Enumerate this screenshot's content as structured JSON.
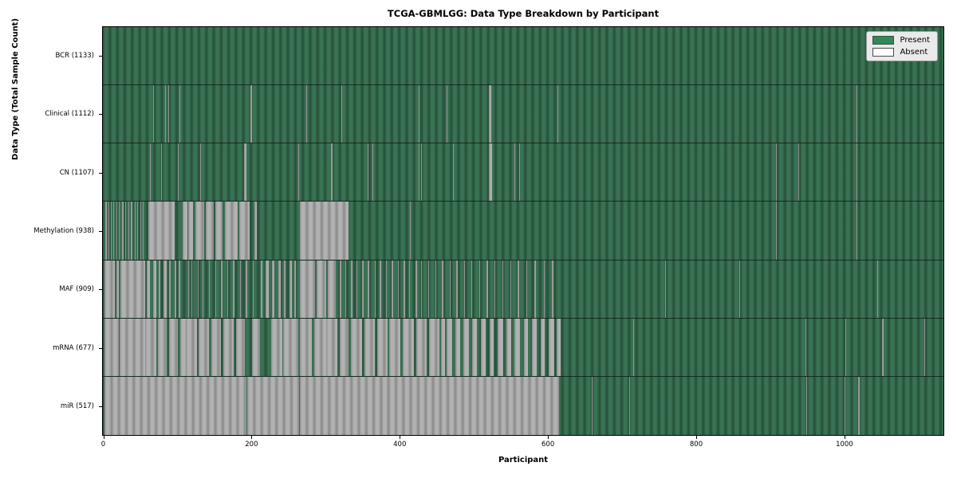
{
  "title": "TCGA-GBMLGG: Data Type Breakdown by Participant",
  "xlabel": "Participant",
  "ylabel": "Data Type (Total Sample Count)",
  "legend": {
    "present_label": "Present",
    "absent_label": "Absent",
    "present_color": "#2e8b57",
    "absent_color": "#ffffff"
  },
  "colors": {
    "present_fill": "#2e8b57",
    "present_rendered_dark": "#27523b",
    "present_rendered_light": "#3a7254",
    "absent_rendered_dark": "#8d8d8d",
    "absent_rendered_light": "#b2b2b2",
    "legend_bg": "#eaeaea",
    "background": "#ffffff"
  },
  "chart_data": {
    "type": "heatmap",
    "title": "TCGA-GBMLGG: Data Type Breakdown by Participant",
    "xlabel": "Participant",
    "ylabel": "Data Type (Total Sample Count)",
    "x_range": [
      0,
      1133
    ],
    "x_ticks": [
      0,
      200,
      400,
      600,
      800,
      1000
    ],
    "legend_entries": [
      "Present",
      "Absent"
    ],
    "legend_position": "upper right",
    "rows": [
      {
        "name": "BCR",
        "count": 1133,
        "label": "BCR (1133)",
        "absent_runs": []
      },
      {
        "name": "Clinical",
        "count": 1112,
        "label": "Clinical (1112)",
        "absent_runs": [
          [
            66,
            67
          ],
          [
            82,
            83
          ],
          [
            87,
            88
          ],
          [
            102,
            103
          ],
          [
            197,
            200
          ],
          [
            273,
            274
          ],
          [
            320,
            321
          ],
          [
            424,
            425
          ],
          [
            462,
            463
          ],
          [
            519,
            522
          ],
          [
            612,
            613
          ],
          [
            1015,
            1016
          ]
        ]
      },
      {
        "name": "CN",
        "count": 1107,
        "label": "CN (1107)",
        "absent_runs": [
          [
            62,
            63
          ],
          [
            77,
            78
          ],
          [
            100,
            101
          ],
          [
            130,
            131
          ],
          [
            189,
            192
          ],
          [
            262,
            263
          ],
          [
            306,
            308
          ],
          [
            356,
            357
          ],
          [
            362,
            363
          ],
          [
            424,
            425
          ],
          [
            428,
            429
          ],
          [
            471,
            472
          ],
          [
            519,
            523
          ],
          [
            554,
            555
          ],
          [
            560,
            561
          ],
          [
            906,
            907
          ],
          [
            937,
            938
          ],
          [
            1015,
            1016
          ]
        ]
      },
      {
        "name": "Methylation",
        "count": 938,
        "label": "Methylation (938)",
        "absent_runs": [
          [
            2,
            4
          ],
          [
            6,
            7
          ],
          [
            9,
            10
          ],
          [
            12,
            14
          ],
          [
            17,
            18
          ],
          [
            20,
            21
          ],
          [
            24,
            26
          ],
          [
            29,
            30
          ],
          [
            33,
            34
          ],
          [
            36,
            38
          ],
          [
            41,
            42
          ],
          [
            45,
            46
          ],
          [
            49,
            50
          ],
          [
            52,
            53
          ],
          [
            60,
            95
          ],
          [
            106,
            112
          ],
          [
            114,
            120
          ],
          [
            123,
            135
          ],
          [
            137,
            148
          ],
          [
            150,
            160
          ],
          [
            163,
            180
          ],
          [
            182,
            196
          ],
          [
            203,
            206
          ],
          [
            264,
            330
          ],
          [
            413,
            414
          ],
          [
            906,
            907
          ],
          [
            1015,
            1016
          ]
        ]
      },
      {
        "name": "MAF",
        "count": 909,
        "label": "MAF (909)",
        "absent_runs": [
          [
            1,
            15
          ],
          [
            17,
            20
          ],
          [
            22,
            55
          ],
          [
            58,
            62
          ],
          [
            66,
            70
          ],
          [
            74,
            76
          ],
          [
            80,
            84
          ],
          [
            88,
            90
          ],
          [
            95,
            97
          ],
          [
            101,
            103
          ],
          [
            113,
            114
          ],
          [
            118,
            119
          ],
          [
            126,
            128
          ],
          [
            133,
            134
          ],
          [
            141,
            143
          ],
          [
            150,
            151
          ],
          [
            158,
            160
          ],
          [
            166,
            167
          ],
          [
            174,
            176
          ],
          [
            183,
            184
          ],
          [
            191,
            193
          ],
          [
            201,
            202
          ],
          [
            211,
            214
          ],
          [
            218,
            222
          ],
          [
            227,
            230
          ],
          [
            235,
            238
          ],
          [
            243,
            245
          ],
          [
            250,
            253
          ],
          [
            257,
            259
          ],
          [
            264,
            285
          ],
          [
            287,
            300
          ],
          [
            302,
            313
          ],
          [
            318,
            320
          ],
          [
            325,
            327
          ],
          [
            333,
            335
          ],
          [
            341,
            342
          ],
          [
            348,
            350
          ],
          [
            356,
            358
          ],
          [
            365,
            366
          ],
          [
            372,
            374
          ],
          [
            380,
            381
          ],
          [
            388,
            390
          ],
          [
            396,
            397
          ],
          [
            404,
            406
          ],
          [
            412,
            413
          ],
          [
            420,
            422
          ],
          [
            428,
            429
          ],
          [
            437,
            439
          ],
          [
            447,
            448
          ],
          [
            456,
            458
          ],
          [
            466,
            467
          ],
          [
            475,
            477
          ],
          [
            486,
            487
          ],
          [
            495,
            497
          ],
          [
            506,
            507
          ],
          [
            516,
            518
          ],
          [
            527,
            528
          ],
          [
            537,
            539
          ],
          [
            548,
            549
          ],
          [
            558,
            560
          ],
          [
            570,
            571
          ],
          [
            581,
            583
          ],
          [
            593,
            594
          ],
          [
            604,
            606
          ],
          [
            757,
            758
          ],
          [
            857,
            858
          ],
          [
            1043,
            1044
          ]
        ]
      },
      {
        "name": "mRNA",
        "count": 677,
        "label": "mRNA (677)",
        "absent_runs": [
          [
            0,
            20
          ],
          [
            21,
            55
          ],
          [
            55,
            70
          ],
          [
            73,
            85
          ],
          [
            88,
            100
          ],
          [
            103,
            110
          ],
          [
            110,
            125
          ],
          [
            128,
            142
          ],
          [
            145,
            158
          ],
          [
            161,
            175
          ],
          [
            178,
            190
          ],
          [
            200,
            210
          ],
          [
            225,
            240
          ],
          [
            242,
            262
          ],
          [
            264,
            280
          ],
          [
            283,
            300
          ],
          [
            300,
            315
          ],
          [
            318,
            330
          ],
          [
            333,
            348
          ],
          [
            351,
            365
          ],
          [
            368,
            382
          ],
          [
            385,
            400
          ],
          [
            403,
            418
          ],
          [
            421,
            435
          ],
          [
            438,
            452
          ],
          [
            455,
            460
          ],
          [
            462,
            470
          ],
          [
            474,
            480
          ],
          [
            485,
            492
          ],
          [
            497,
            503
          ],
          [
            508,
            515
          ],
          [
            520,
            526
          ],
          [
            531,
            538
          ],
          [
            543,
            549
          ],
          [
            554,
            561
          ],
          [
            566,
            572
          ],
          [
            577,
            584
          ],
          [
            589,
            595
          ],
          [
            600,
            607
          ],
          [
            611,
            616
          ],
          [
            714,
            715
          ],
          [
            946,
            947
          ],
          [
            1000,
            1001
          ],
          [
            1050,
            1052
          ],
          [
            1107,
            1108
          ]
        ]
      },
      {
        "name": "miR",
        "count": 517,
        "label": "miR (517)",
        "absent_runs": [
          [
            0,
            192
          ],
          [
            193,
            263
          ],
          [
            264,
            614
          ],
          [
            658,
            659
          ],
          [
            708,
            709
          ],
          [
            947,
            948
          ],
          [
            999,
            1000
          ],
          [
            1017,
            1019
          ]
        ]
      }
    ]
  }
}
